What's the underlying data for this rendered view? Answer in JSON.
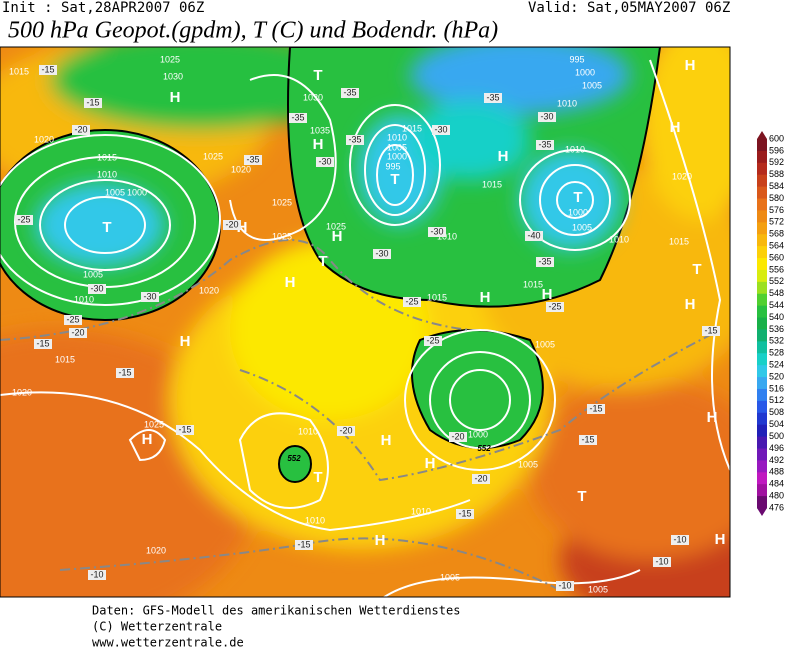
{
  "header": {
    "init": "Init : Sat,28APR2007 06Z",
    "valid": "Valid: Sat,05MAY2007 06Z",
    "title": "500 hPa Geopot.(gpdm), T (C) und Bodendr. (hPa)"
  },
  "footer": {
    "line1": "Daten: GFS-Modell des amerikanischen Wetterdienstes",
    "line2": "(C) Wetterzentrale",
    "line3": "www.wetterzentrale.de"
  },
  "colorbar": {
    "levels": [
      600,
      596,
      592,
      588,
      584,
      580,
      576,
      572,
      568,
      564,
      560,
      556,
      552,
      548,
      544,
      540,
      536,
      532,
      528,
      524,
      520,
      516,
      512,
      508,
      504,
      500,
      496,
      492,
      488,
      484,
      480,
      476
    ],
    "colors": [
      "#7c1420",
      "#9a1c1c",
      "#b42a1c",
      "#c8401a",
      "#d9581a",
      "#e8721a",
      "#ee8a14",
      "#f4a010",
      "#f8b80c",
      "#fcd008",
      "#fce800",
      "#d8ec10",
      "#9ce020",
      "#50d030",
      "#28c040",
      "#18b048",
      "#10b070",
      "#10c0a0",
      "#18d0c8",
      "#30c8e8",
      "#38a8f0",
      "#3080f0",
      "#2858e8",
      "#2038d0",
      "#2020b8",
      "#4818b0",
      "#7018b8",
      "#9818c0",
      "#c018c0",
      "#a010a0",
      "#6a0a70"
    ]
  },
  "map": {
    "pressure_centers": [
      "H",
      "T",
      "H",
      "T",
      "H",
      "T",
      "T",
      "H",
      "H",
      "H",
      "T",
      "H",
      "H",
      "H",
      "H",
      "T",
      "H",
      "H",
      "T",
      "H",
      "H",
      "H",
      "T",
      "H",
      "H",
      "H"
    ],
    "isobar_labels": [
      "1015",
      "1025",
      "1030",
      "1030",
      "1035",
      "1020",
      "1015",
      "1010",
      "1005",
      "1000",
      "1025",
      "1020",
      "1025",
      "1025",
      "1025",
      "1005",
      "1010",
      "1020",
      "1015",
      "1020",
      "1025",
      "1010",
      "1010",
      "1010",
      "1020",
      "1005",
      "1005",
      "1015",
      "1010",
      "1005",
      "1000",
      "995",
      "1015",
      "1010",
      "1015",
      "1005",
      "1000",
      "1005",
      "1010",
      "1000",
      "1005",
      "1010",
      "1015",
      "1020",
      "1010",
      "995",
      "1000",
      "1005",
      "1015"
    ],
    "temperature_labels": [
      "-15",
      "-15",
      "-20",
      "-25",
      "-30",
      "-30",
      "-25",
      "-20",
      "-15",
      "-15",
      "-15",
      "-20",
      "-20",
      "-20",
      "-15",
      "-15",
      "-10",
      "-10",
      "-10",
      "-10",
      "-15",
      "-15",
      "-15",
      "-25",
      "-25",
      "-25",
      "-30",
      "-30",
      "-35",
      "-40",
      "-35",
      "-30",
      "-35",
      "-35",
      "-35",
      "-35",
      "-30",
      "-30",
      "-35",
      "-20"
    ],
    "contour_labels": [
      "552",
      "552"
    ]
  }
}
